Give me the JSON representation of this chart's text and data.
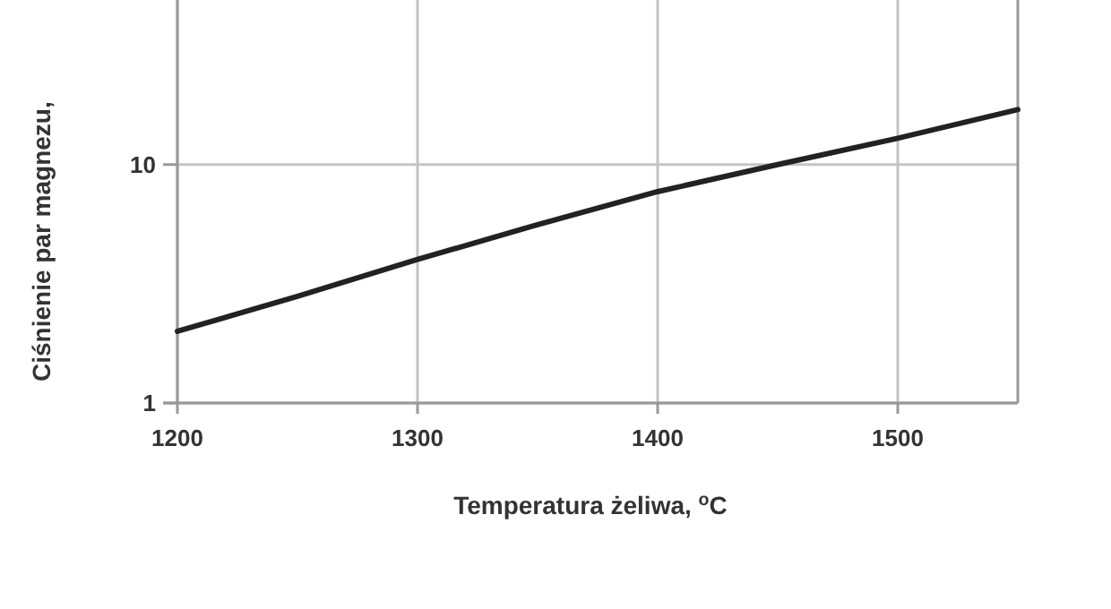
{
  "chart_data": {
    "type": "line",
    "xlabel": "Temperatura żeliwa, $^{o}$C",
    "ylabel": "Ciśnienie par magnezu,",
    "x": [
      1200,
      1250,
      1300,
      1350,
      1400,
      1450,
      1500,
      1550
    ],
    "series": [
      {
        "color": "#222222",
        "values": [
          2.0,
          2.8,
          4.0,
          5.6,
          7.7,
          10,
          12.9,
          17
        ]
      }
    ],
    "xlim": [
      1200,
      1550
    ],
    "xticks": [
      1200,
      1300,
      1400,
      1500
    ],
    "ylim": [
      1,
      49
    ],
    "yticks": [
      1,
      10
    ],
    "log": "y",
    "grid": true,
    "marker": "none",
    "line_style": "solid"
  }
}
